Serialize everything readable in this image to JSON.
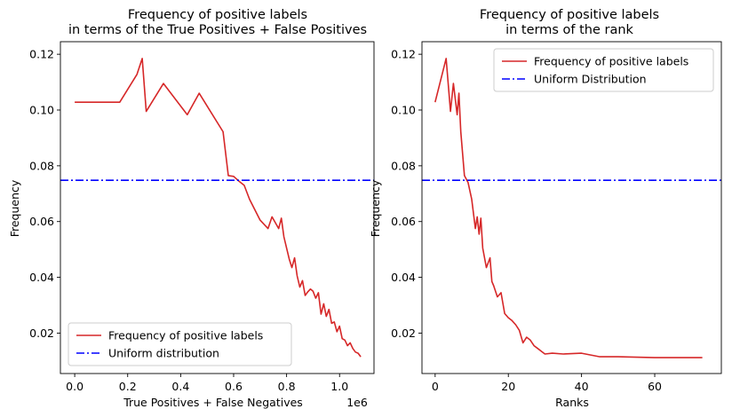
{
  "chart_data": [
    {
      "type": "line",
      "title_line1": "Frequency of positive labels",
      "title_line2": "in terms of the True Positives + False Positives",
      "xlabel": "True Positives + False Negatives",
      "ylabel": "Frequency",
      "x_offset_label": "1e6",
      "xlim": [
        -0.054,
        1.13
      ],
      "ylim": [
        0.0055,
        0.1245
      ],
      "x_ticks": [
        0,
        0.2,
        0.4,
        0.6,
        0.8,
        1.0
      ],
      "x_tick_labels": [
        "0.0",
        "0.2",
        "0.4",
        "0.6",
        "0.8",
        "1.0"
      ],
      "y_ticks": [
        0.02,
        0.04,
        0.06,
        0.08,
        0.1,
        0.12
      ],
      "y_tick_labels": [
        "0.02",
        "0.04",
        "0.06",
        "0.08",
        "0.10",
        "0.12"
      ],
      "legend": {
        "placement": "lower-left",
        "entries": [
          "Frequency of positive labels",
          "Uniform distribution"
        ]
      },
      "series": [
        {
          "name": "Frequency of positive labels",
          "color": "#d62728",
          "style": "solid",
          "x": [
            0.0,
            0.17,
            0.235,
            0.255,
            0.27,
            0.335,
            0.425,
            0.47,
            0.56,
            0.58,
            0.6,
            0.62,
            0.64,
            0.66,
            0.7,
            0.73,
            0.745,
            0.77,
            0.78,
            0.79,
            0.8,
            0.81,
            0.82,
            0.83,
            0.84,
            0.85,
            0.86,
            0.87,
            0.88,
            0.89,
            0.9,
            0.91,
            0.92,
            0.93,
            0.94,
            0.95,
            0.96,
            0.97,
            0.98,
            0.99,
            1.0,
            1.01,
            1.02,
            1.03,
            1.04,
            1.05,
            1.06,
            1.07,
            1.08
          ],
          "y": [
            0.1028,
            0.1028,
            0.1128,
            0.1185,
            0.0995,
            0.1095,
            0.0983,
            0.106,
            0.0922,
            0.0765,
            0.0762,
            0.0745,
            0.073,
            0.068,
            0.0605,
            0.0575,
            0.0617,
            0.0575,
            0.0612,
            0.0545,
            0.0505,
            0.0465,
            0.0435,
            0.047,
            0.0405,
            0.0365,
            0.0388,
            0.0335,
            0.0348,
            0.0358,
            0.035,
            0.0325,
            0.0345,
            0.0268,
            0.0305,
            0.026,
            0.0285,
            0.0235,
            0.024,
            0.0205,
            0.0225,
            0.018,
            0.0175,
            0.0155,
            0.0165,
            0.0145,
            0.0132,
            0.0128,
            0.0115
          ]
        },
        {
          "name": "Uniform distribution",
          "color": "#0000ff",
          "style": "dashdot",
          "constant": 0.0748
        }
      ]
    },
    {
      "type": "line",
      "title_line1": "Frequency of positive labels",
      "title_line2": "in terms of the rank",
      "xlabel": "Ranks",
      "ylabel": "Frequency",
      "xlim": [
        -3.6,
        78.2
      ],
      "ylim": [
        0.0055,
        0.1245
      ],
      "x_ticks": [
        0,
        20,
        40,
        60
      ],
      "x_tick_labels": [
        "0",
        "20",
        "40",
        "60"
      ],
      "y_ticks": [
        0.02,
        0.04,
        0.06,
        0.08,
        0.1,
        0.12
      ],
      "y_tick_labels": [
        "0.02",
        "0.04",
        "0.06",
        "0.08",
        "0.10",
        "0.12"
      ],
      "legend": {
        "placement": "upper-right",
        "entries": [
          "Frequency of positive labels",
          "Uniform Distribution"
        ]
      },
      "series": [
        {
          "name": "Frequency of positive labels",
          "color": "#d62728",
          "style": "solid",
          "x": [
            0,
            3,
            4.2,
            5,
            6,
            6.5,
            7,
            8,
            9,
            10,
            11,
            11.5,
            12,
            12.5,
            13,
            14,
            15,
            15.5,
            16,
            17,
            18,
            19,
            20,
            21,
            22,
            23,
            24,
            25,
            26,
            27,
            28,
            29,
            30,
            32,
            35,
            40,
            45,
            50,
            60,
            65,
            70,
            73
          ],
          "y": [
            0.1028,
            0.1185,
            0.0995,
            0.1095,
            0.0983,
            0.106,
            0.0922,
            0.0765,
            0.074,
            0.068,
            0.0575,
            0.0617,
            0.0555,
            0.0612,
            0.0505,
            0.0435,
            0.047,
            0.0385,
            0.037,
            0.033,
            0.0345,
            0.027,
            0.0255,
            0.0245,
            0.023,
            0.021,
            0.0165,
            0.0185,
            0.0175,
            0.0155,
            0.0145,
            0.0135,
            0.0125,
            0.0128,
            0.0125,
            0.0128,
            0.0115,
            0.0115,
            0.0112,
            0.0112,
            0.0112,
            0.0112
          ]
        },
        {
          "name": "Uniform Distribution",
          "color": "#0000ff",
          "style": "dashdot",
          "constant": 0.0748
        }
      ]
    }
  ]
}
